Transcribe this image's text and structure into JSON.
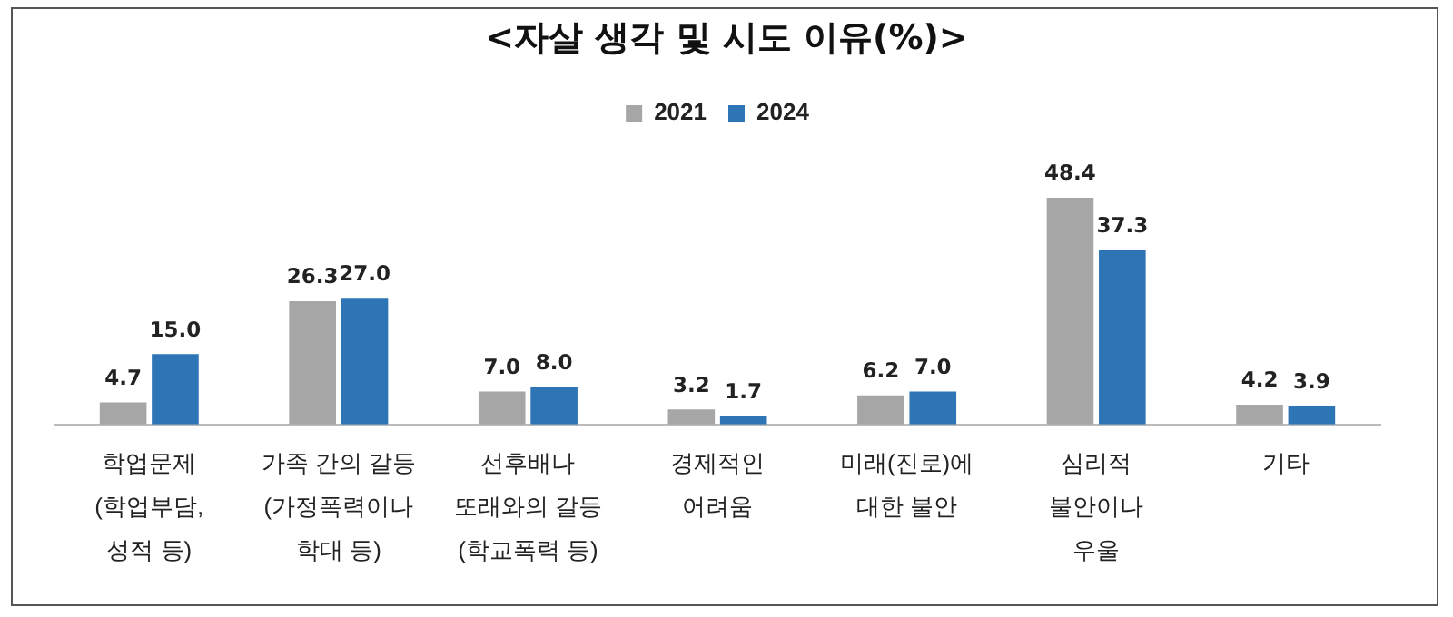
{
  "chart_data": {
    "type": "bar",
    "title": "<자살 생각 및 시도 이유(%)>",
    "categories": [
      "학업문제\n(학업부담,\n성적 등)",
      "가족 간의 갈등\n(가정폭력이나\n학대 등)",
      "선후배나\n또래와의 갈등\n(학교폭력 등)",
      "경제적인\n어려움",
      "미래(진로)에\n대한 불안",
      "심리적\n불안이나\n우울",
      "기타"
    ],
    "series": [
      {
        "name": "2021",
        "color": "#a6a6a6",
        "values": [
          4.7,
          26.3,
          7.0,
          3.2,
          6.2,
          48.4,
          4.2
        ],
        "value_labels": [
          "4.7",
          "26.3",
          "7.0",
          "3.2",
          "6.2",
          "48.4",
          "4.2"
        ]
      },
      {
        "name": "2024",
        "color": "#2e75b6",
        "values": [
          15.0,
          27.0,
          8.0,
          1.7,
          7.0,
          37.3,
          3.9
        ],
        "value_labels": [
          "15.0",
          "27.0",
          "8.0",
          "1.7",
          "7.0",
          "37.3",
          "3.9"
        ]
      }
    ],
    "legend": "top",
    "grid": false
  }
}
